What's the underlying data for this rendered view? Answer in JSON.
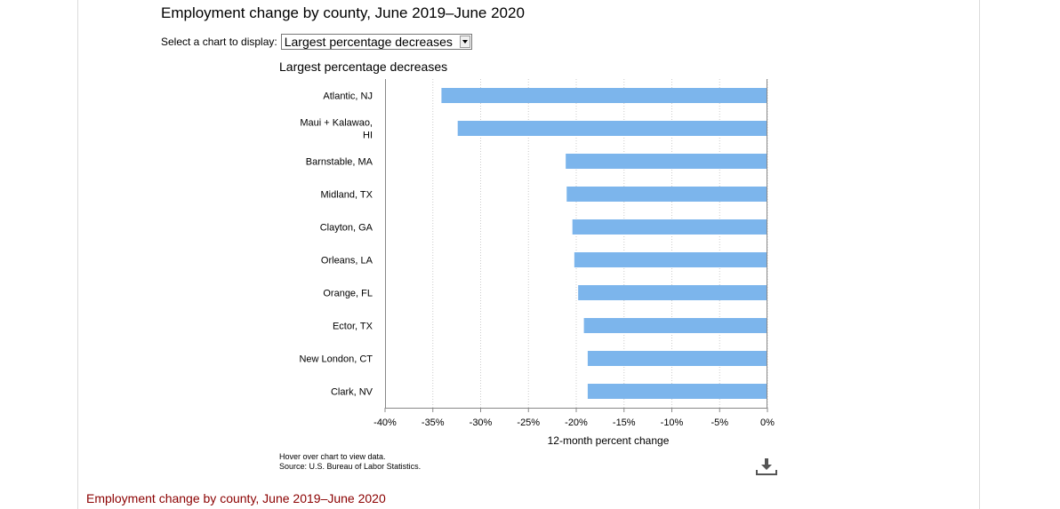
{
  "page": {
    "title": "Employment change by county, June 2019–June 2020",
    "bottom_title": "Employment change by county, June 2019–June 2020"
  },
  "selector": {
    "label": "Select a chart to display:",
    "selected": "Largest percentage decreases"
  },
  "notes": {
    "hover": "Hover over chart to view data.",
    "source": "Source: U.S. Bureau of Labor Statistics."
  },
  "icons": {
    "download": "download-icon"
  },
  "colors": {
    "bar": "#7cb5ec",
    "bottom_title": "#8b0000"
  },
  "chart_data": {
    "type": "bar",
    "orientation": "horizontal",
    "title": "Largest percentage decreases",
    "xlabel": "12-month percent change",
    "ylabel": "",
    "categories": [
      "Atlantic, NJ",
      "Maui + Kalawao, HI",
      "Barnstable, MA",
      "Midland, TX",
      "Clayton, GA",
      "Orleans, LA",
      "Orange, FL",
      "Ector, TX",
      "New London, CT",
      "Clark, NV"
    ],
    "category_lines": [
      [
        "Atlantic, NJ"
      ],
      [
        "Maui + Kalawao,",
        "HI"
      ],
      [
        "Barnstable, MA"
      ],
      [
        "Midland, TX"
      ],
      [
        "Clayton, GA"
      ],
      [
        "Orleans, LA"
      ],
      [
        "Orange, FL"
      ],
      [
        "Ector, TX"
      ],
      [
        "New London, CT"
      ],
      [
        "Clark, NV"
      ]
    ],
    "values": [
      -34.1,
      -32.4,
      -21.1,
      -21.0,
      -20.4,
      -20.2,
      -19.8,
      -19.2,
      -18.8,
      -18.8
    ],
    "xlim": [
      -40,
      0
    ],
    "xticks": [
      -40,
      -35,
      -30,
      -25,
      -20,
      -15,
      -10,
      -5,
      0
    ],
    "xtick_labels": [
      "-40%",
      "-35%",
      "-30%",
      "-25%",
      "-20%",
      "-15%",
      "-10%",
      "-5%",
      "0%"
    ],
    "grid": true,
    "legend": "none"
  }
}
